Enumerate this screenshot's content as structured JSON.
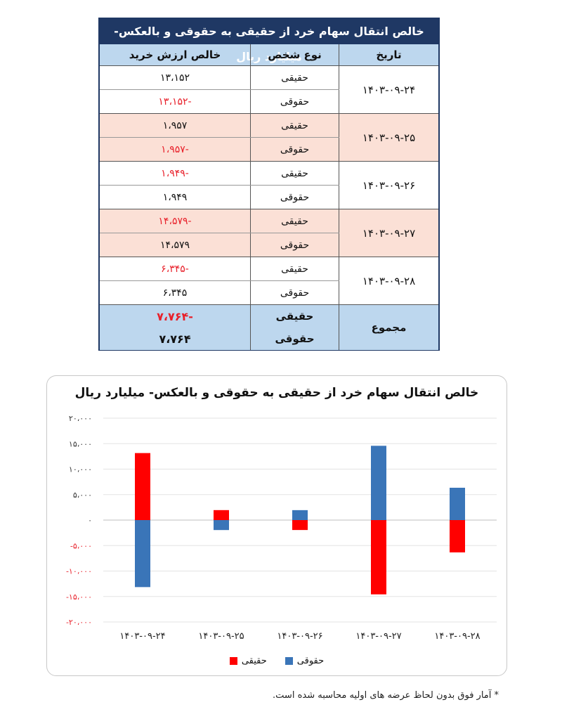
{
  "table": {
    "title": "خالص انتقال سهام خرد از حقیقی به حقوقی و بالعکس- میلیارد ریال",
    "headers": {
      "date": "تاریخ",
      "person_type": "نوع شخص",
      "net_value": "خالص ارزش خرید"
    },
    "groups": [
      {
        "date": "۱۴۰۳-۰۹-۲۴",
        "rows": [
          {
            "type": "حقیقی",
            "value": "۱۳،۱۵۲",
            "negative": false
          },
          {
            "type": "حقوقی",
            "value": "-۱۳،۱۵۲",
            "negative": true
          }
        ]
      },
      {
        "date": "۱۴۰۳-۰۹-۲۵",
        "rows": [
          {
            "type": "حقیقی",
            "value": "۱،۹۵۷",
            "negative": false
          },
          {
            "type": "حقوقی",
            "value": "-۱،۹۵۷",
            "negative": true
          }
        ]
      },
      {
        "date": "۱۴۰۳-۰۹-۲۶",
        "rows": [
          {
            "type": "حقیقی",
            "value": "-۱،۹۴۹",
            "negative": true
          },
          {
            "type": "حقوقی",
            "value": "۱،۹۴۹",
            "negative": false
          }
        ]
      },
      {
        "date": "۱۴۰۳-۰۹-۲۷",
        "rows": [
          {
            "type": "حقیقی",
            "value": "-۱۴،۵۷۹",
            "negative": true
          },
          {
            "type": "حقوقی",
            "value": "۱۴،۵۷۹",
            "negative": false
          }
        ]
      },
      {
        "date": "۱۴۰۳-۰۹-۲۸",
        "rows": [
          {
            "type": "حقیقی",
            "value": "-۶،۳۴۵",
            "negative": true
          },
          {
            "type": "حقوقی",
            "value": "۶،۳۴۵",
            "negative": false
          }
        ]
      }
    ],
    "total": {
      "label": "مجموع",
      "rows": [
        {
          "type": "حقیقی",
          "value": "-۷،۷۶۴",
          "negative": true
        },
        {
          "type": "حقوقی",
          "value": "۷،۷۶۴",
          "negative": false
        }
      ]
    }
  },
  "colors": {
    "header_bg": "#1f3864",
    "subheader_bg": "#bdd7ee",
    "band_bg": "#fbe0d6",
    "negative_text": "#e8202a",
    "haghighi": "#ff0000",
    "hoghoghi": "#3a75b8"
  },
  "chart_data": {
    "type": "bar",
    "stacked": true,
    "title": "خالص انتقال سهام خرد از حقیقی به حقوقی و بالعکس- میلیارد ریال",
    "categories": [
      "۱۴۰۳-۰۹-۲۴",
      "۱۴۰۳-۰۹-۲۵",
      "۱۴۰۳-۰۹-۲۶",
      "۱۴۰۳-۰۹-۲۷",
      "۱۴۰۳-۰۹-۲۸"
    ],
    "series": [
      {
        "name": "حقیقی",
        "color": "#ff0000",
        "values": [
          13152,
          1957,
          -1949,
          -14579,
          -6345
        ]
      },
      {
        "name": "حقوقی",
        "color": "#3a75b8",
        "values": [
          -13152,
          -1957,
          1949,
          14579,
          6345
        ]
      }
    ],
    "ylim": [
      -20000,
      20000
    ],
    "yticks": [
      {
        "value": 20000,
        "label": "۲۰،۰۰۰",
        "negative": false
      },
      {
        "value": 15000,
        "label": "۱۵،۰۰۰",
        "negative": false
      },
      {
        "value": 10000,
        "label": "۱۰،۰۰۰",
        "negative": false
      },
      {
        "value": 5000,
        "label": "۵،۰۰۰",
        "negative": false
      },
      {
        "value": 0,
        "label": "۰",
        "negative": false
      },
      {
        "value": -5000,
        "label": "-۵،۰۰۰",
        "negative": true
      },
      {
        "value": -10000,
        "label": "-۱۰،۰۰۰",
        "negative": true
      },
      {
        "value": -15000,
        "label": "-۱۵،۰۰۰",
        "negative": true
      },
      {
        "value": -20000,
        "label": "-۲۰،۰۰۰",
        "negative": true
      }
    ],
    "grid": true,
    "legend_position": "bottom",
    "legend": [
      {
        "name": "حقوقی",
        "color": "#3a75b8"
      },
      {
        "name": "حقیقی",
        "color": "#ff0000"
      }
    ]
  },
  "footnote": "* آمار فوق بدون لحاظ عرضه های اولیه محاسبه شده است."
}
